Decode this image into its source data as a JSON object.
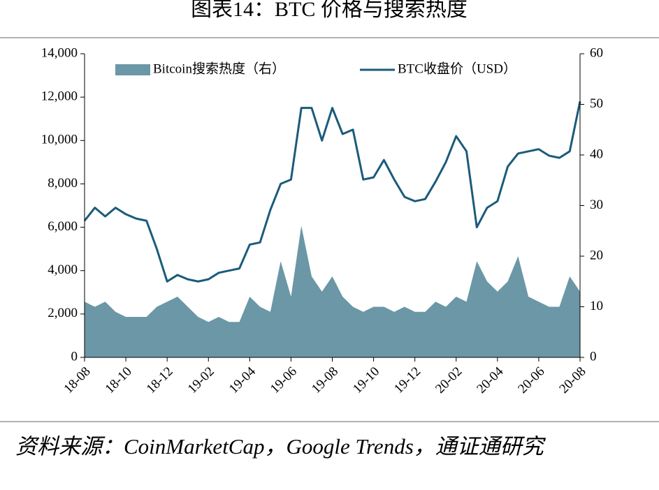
{
  "chart_data": {
    "type": "area-line",
    "title": "图表14：BTC 价格与搜索热度",
    "source": "资料来源：CoinMarketCap，Google Trends，通证通研究",
    "categories": [
      "18-08",
      null,
      null,
      null,
      "18-10",
      null,
      null,
      null,
      "18-12",
      null,
      null,
      null,
      "19-02",
      null,
      null,
      null,
      "19-04",
      null,
      null,
      null,
      "19-06",
      null,
      null,
      null,
      "19-08",
      null,
      null,
      null,
      "19-10",
      null,
      null,
      null,
      "19-12",
      null,
      null,
      null,
      "20-02",
      null,
      null,
      null,
      "20-04",
      null,
      null,
      null,
      "20-06",
      null,
      null,
      null,
      "20-08"
    ],
    "series": [
      {
        "name": "Bitcoin搜索热度（右）",
        "color": "#6b97a6",
        "axis": "y2",
        "kind": "area",
        "values": [
          11,
          10,
          11,
          9,
          8,
          8,
          8,
          10,
          11,
          12,
          10,
          8,
          7,
          8,
          7,
          7,
          12,
          10,
          9,
          19,
          12,
          26,
          16,
          13,
          16,
          12,
          10,
          9,
          10,
          10,
          9,
          10,
          9,
          9,
          11,
          10,
          12,
          11,
          19,
          15,
          13,
          15,
          20,
          12,
          11,
          10,
          10,
          16,
          13
        ]
      },
      {
        "name": "BTC收盘价（USD）",
        "color": "#1b5b7b",
        "axis": "y",
        "kind": "line",
        "values": [
          6300,
          6900,
          6500,
          6900,
          6600,
          6400,
          6300,
          5000,
          3500,
          3800,
          3600,
          3500,
          3600,
          3900,
          4000,
          4100,
          5200,
          5300,
          6800,
          8000,
          8200,
          11500,
          11500,
          10000,
          11500,
          10300,
          10500,
          8200,
          8300,
          9100,
          8200,
          7400,
          7200,
          7300,
          8100,
          9000,
          10200,
          9500,
          6000,
          6900,
          7200,
          8800,
          9400,
          9500,
          9600,
          9300,
          9200,
          9500,
          11800
        ]
      }
    ],
    "ylim": [
      0,
      14000
    ],
    "yticks": [
      0,
      {
        "value": 2000,
        "label": "2,000"
      },
      {
        "value": 4000,
        "label": "4,000"
      },
      {
        "value": 6000,
        "label": "6,000"
      },
      {
        "value": 8000,
        "label": "8,000"
      },
      {
        "value": 10000,
        "label": "10,000"
      },
      {
        "value": 12000,
        "label": "12,000"
      },
      {
        "value": 14000,
        "label": "14,000"
      }
    ],
    "y2lim": [
      0,
      60
    ],
    "y2ticks": [
      0,
      10,
      20,
      30,
      40,
      50,
      60
    ],
    "legend": "top"
  }
}
